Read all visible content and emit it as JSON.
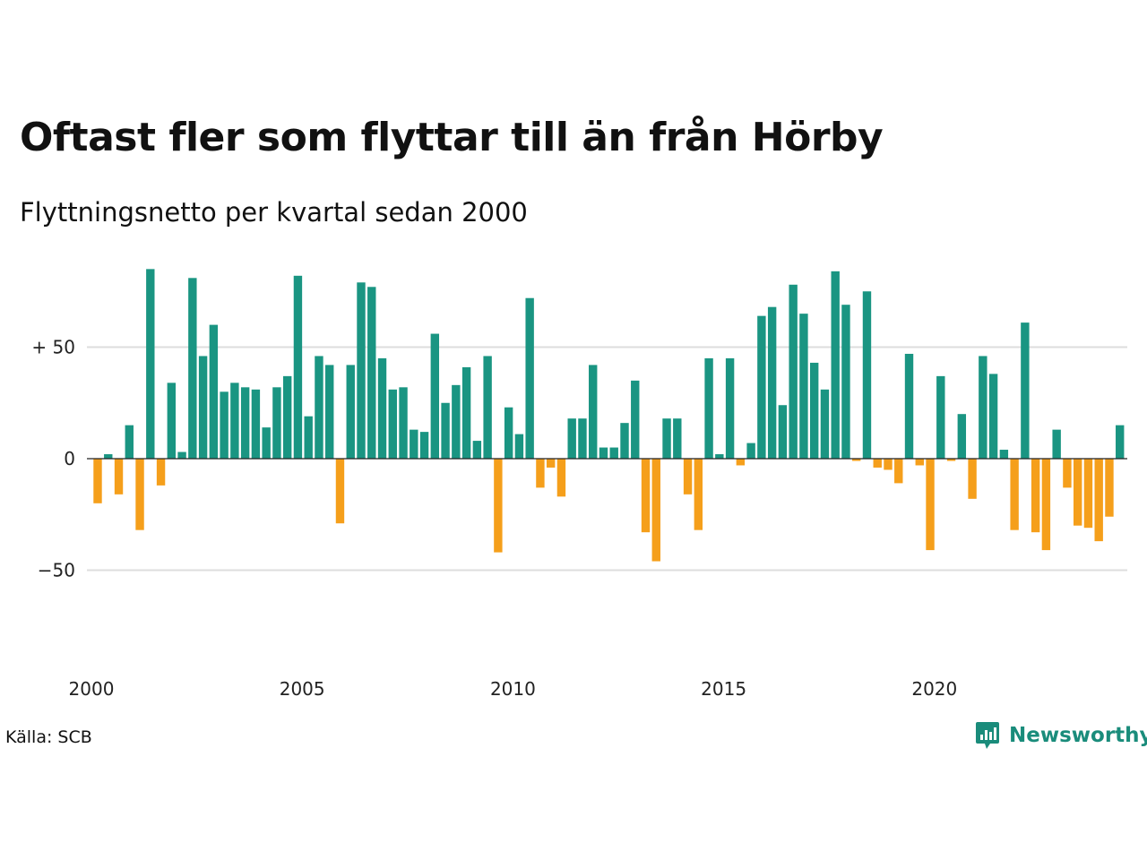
{
  "title": "Oftast fler som flyttar till än från Hörby",
  "subtitle": "Flyttningsnetto per kvartal sedan 2000",
  "source": "Källa: SCB",
  "brand": {
    "name": "Newsworthy",
    "icon": "newsworthy-logo-icon"
  },
  "colors": {
    "positive": "#1a9582",
    "negative": "#f59f1b",
    "grid": "#dddddd",
    "zero_line": "#222222"
  },
  "chart_data": {
    "type": "bar",
    "title": "Oftast fler som flyttar till än från Hörby",
    "subtitle": "Flyttningsnetto per kvartal sedan 2000",
    "ylim": [
      -75,
      90
    ],
    "y_ticks": [
      {
        "value": 50,
        "label": "+ 50"
      },
      {
        "value": 0,
        "label": "0"
      },
      {
        "value": -50,
        "label": "−50"
      }
    ],
    "x_ticks": [
      "2000",
      "2005",
      "2010",
      "2015",
      "2020"
    ],
    "grid": true,
    "start_year": 2000,
    "values": [
      -20,
      2,
      -16,
      15,
      -32,
      85,
      -12,
      34,
      3,
      81,
      46,
      60,
      30,
      34,
      32,
      31,
      14,
      32,
      37,
      82,
      19,
      46,
      42,
      -29,
      42,
      79,
      77,
      45,
      31,
      32,
      13,
      12,
      56,
      25,
      33,
      41,
      8,
      46,
      -42,
      23,
      11,
      72,
      -13,
      -4,
      -17,
      18,
      18,
      42,
      5,
      5,
      16,
      35,
      -33,
      -46,
      18,
      18,
      -16,
      -32,
      45,
      2,
      45,
      -3,
      7,
      64,
      68,
      24,
      78,
      65,
      43,
      31,
      84,
      69,
      -1,
      75,
      -4,
      -5,
      -11,
      47,
      -3,
      -41,
      37,
      -1,
      20,
      -18,
      46,
      38,
      4,
      -32,
      61,
      -33,
      -41,
      13,
      -13,
      -30,
      -31,
      -37,
      -26,
      15
    ]
  }
}
